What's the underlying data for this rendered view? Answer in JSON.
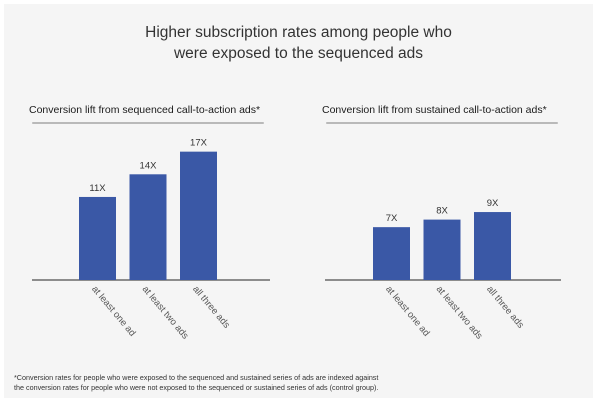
{
  "title_line1": "Higher subscription rates among people who",
  "title_line2": "were exposed to the sequenced ads",
  "chart_data": [
    {
      "type": "bar",
      "title": "Conversion lift from sequenced call-to-action ads*",
      "categories": [
        "at least one ad",
        "at least two ads",
        "all three ads"
      ],
      "values": [
        11,
        14,
        17
      ],
      "value_labels": [
        "11X",
        "14X",
        "17X"
      ],
      "ylim": [
        0,
        20
      ],
      "color": "#3a58a6"
    },
    {
      "type": "bar",
      "title": "Conversion lift from sustained call-to-action ads*",
      "categories": [
        "at least one ad",
        "at least two ads",
        "all three ads"
      ],
      "values": [
        7,
        8,
        9
      ],
      "value_labels": [
        "7X",
        "8X",
        "9X"
      ],
      "ylim": [
        0,
        20
      ],
      "color": "#3a58a6"
    }
  ],
  "footnote_line1": "*Conversion rates for people who were exposed to the sequenced and sustained series of ads are indexed against",
  "footnote_line2": "the conversion rates for people who were not exposed to the sequenced or sustained series of ads (control group)."
}
